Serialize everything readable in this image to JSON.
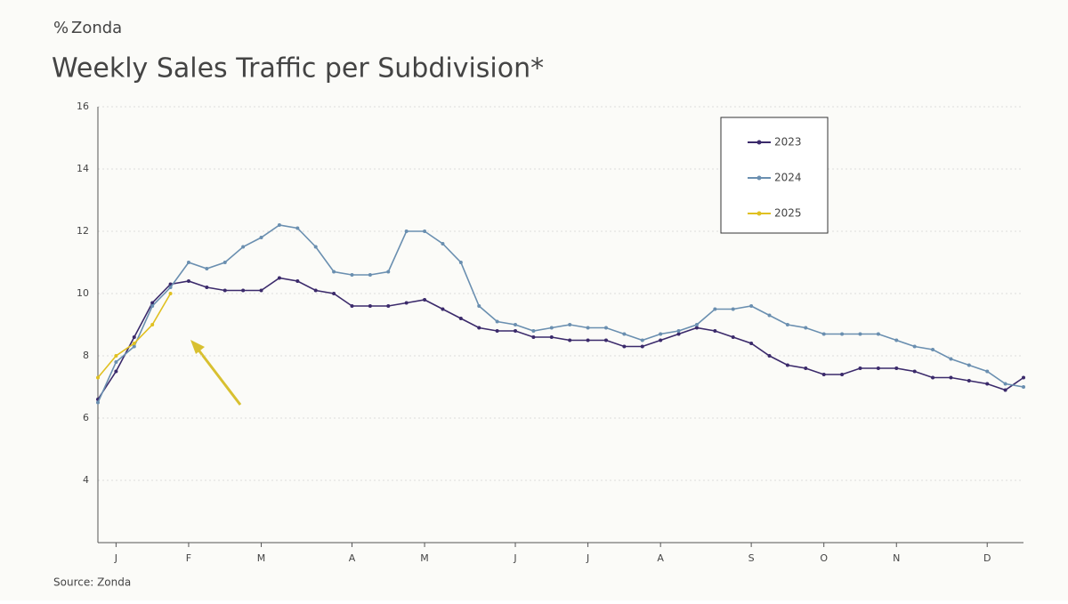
{
  "brand": "Zonda",
  "chart_data": {
    "type": "line",
    "title": "Weekly Sales Traffic per Subdivision*",
    "source": "Source: Zonda",
    "x": [
      1,
      2,
      3,
      4,
      5,
      6,
      7,
      8,
      9,
      10,
      11,
      12,
      13,
      14,
      15,
      16,
      17,
      18,
      19,
      20,
      21,
      22,
      23,
      24,
      25,
      26,
      27,
      28,
      29,
      30,
      31,
      32,
      33,
      34,
      35,
      36,
      37,
      38,
      39,
      40,
      41,
      42,
      43,
      44,
      45,
      46,
      47,
      48,
      49,
      50,
      51,
      52
    ],
    "xlim": [
      1,
      52
    ],
    "xticks": [
      {
        "value": 2,
        "label": "J"
      },
      {
        "value": 6,
        "label": "F"
      },
      {
        "value": 10,
        "label": "M"
      },
      {
        "value": 15,
        "label": "A"
      },
      {
        "value": 19,
        "label": "M"
      },
      {
        "value": 24,
        "label": "J"
      },
      {
        "value": 28,
        "label": "J"
      },
      {
        "value": 32,
        "label": "A"
      },
      {
        "value": 37,
        "label": "S"
      },
      {
        "value": 41,
        "label": "O"
      },
      {
        "value": 45,
        "label": "N"
      },
      {
        "value": 50,
        "label": "D"
      }
    ],
    "ylim": [
      2,
      16
    ],
    "yticks": [
      4,
      6,
      8,
      10,
      12,
      14,
      16
    ],
    "grid": true,
    "legend": "upper right",
    "series": [
      {
        "name": "2023",
        "color": "#3b2a6b",
        "values": [
          6.6,
          7.5,
          8.6,
          9.7,
          10.3,
          10.4,
          10.2,
          10.1,
          10.1,
          10.1,
          10.5,
          10.4,
          10.1,
          10.0,
          9.6,
          9.6,
          9.6,
          9.7,
          9.8,
          9.5,
          9.2,
          8.9,
          8.8,
          8.8,
          8.6,
          8.6,
          8.5,
          8.5,
          8.5,
          8.3,
          8.3,
          8.5,
          8.7,
          8.9,
          8.8,
          8.6,
          8.4,
          8.0,
          7.7,
          7.6,
          7.4,
          7.4,
          7.6,
          7.6,
          7.6,
          7.5,
          7.3,
          7.3,
          7.2,
          7.1,
          6.9,
          7.3
        ]
      },
      {
        "name": "2024",
        "color": "#6a8fb0",
        "values": [
          6.5,
          7.8,
          8.3,
          9.6,
          10.2,
          11.0,
          10.8,
          11.0,
          11.5,
          11.8,
          12.2,
          12.1,
          11.5,
          10.7,
          10.6,
          10.6,
          10.7,
          12.0,
          12.0,
          11.6,
          11.0,
          9.6,
          9.1,
          9.0,
          8.8,
          8.9,
          9.0,
          8.9,
          8.9,
          8.7,
          8.5,
          8.7,
          8.8,
          9.0,
          9.5,
          9.5,
          9.6,
          9.3,
          9.0,
          8.9,
          8.7,
          8.7,
          8.7,
          8.7,
          8.5,
          8.3,
          8.2,
          7.9,
          7.7,
          7.5,
          7.1,
          7.0
        ]
      },
      {
        "name": "2025",
        "color": "#e0c020",
        "values": [
          7.3,
          8.0,
          8.4,
          9.0,
          10.0,
          null,
          null,
          null,
          null,
          null,
          null,
          null,
          null,
          null,
          null,
          null,
          null,
          null,
          null,
          null,
          null,
          null,
          null,
          null,
          null,
          null,
          null,
          null,
          null,
          null,
          null,
          null,
          null,
          null,
          null,
          null,
          null,
          null,
          null,
          null,
          null,
          null,
          null,
          null,
          null,
          null,
          null,
          null,
          null,
          null,
          null,
          null
        ]
      }
    ]
  }
}
